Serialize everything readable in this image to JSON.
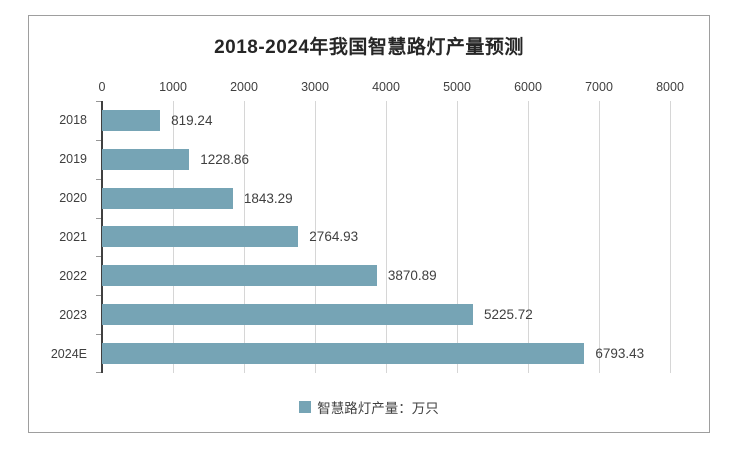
{
  "chart_data": {
    "type": "bar",
    "orientation": "horizontal",
    "title": "2018-2024年我国智慧路灯产量预测",
    "categories": [
      "2018",
      "2019",
      "2020",
      "2021",
      "2022",
      "2023",
      "2024E"
    ],
    "values": [
      819.24,
      1228.86,
      1843.29,
      2764.93,
      3870.89,
      5225.72,
      6793.43
    ],
    "value_labels": [
      "819.24",
      "1228.86",
      "1843.29",
      "2764.93",
      "3870.89",
      "5225.72",
      "6793.43"
    ],
    "xlabel": "",
    "ylabel": "",
    "axis": {
      "min": 0,
      "max": 8000,
      "step": 1000,
      "tick_labels": [
        "0",
        "1000",
        "2000",
        "3000",
        "4000",
        "5000",
        "6000",
        "7000",
        "8000"
      ]
    },
    "grid": true,
    "legend_position": "bottom",
    "legend": {
      "label": "智慧路灯产量：万只"
    },
    "colors": {
      "bar": "#76a4b5",
      "grid": "#d6d6d6",
      "axis_line": "#404040",
      "text": "#3f3f3f",
      "title": "#262626",
      "frame_border": "#9e9e9e",
      "background": "#ffffff"
    }
  }
}
